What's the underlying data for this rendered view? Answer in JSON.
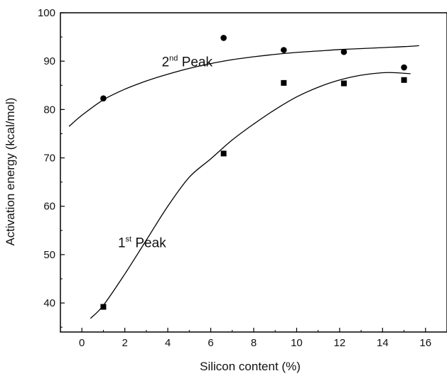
{
  "chart_data": {
    "type": "scatter",
    "title": "",
    "xlabel": "Silicon content (%)",
    "ylabel": "Activation energy (kcal/mol)",
    "xlim": [
      -1,
      17
    ],
    "ylim": [
      34,
      100
    ],
    "xticks": [
      0,
      2,
      4,
      6,
      8,
      10,
      12,
      14,
      16
    ],
    "yticks": [
      40,
      50,
      60,
      70,
      80,
      90,
      100
    ],
    "grid": false,
    "series": [
      {
        "name": "2nd Peak",
        "marker": "circle",
        "x": [
          1,
          6.6,
          9.4,
          12.2,
          15
        ],
        "y": [
          82.3,
          94.8,
          92.3,
          91.9,
          88.7
        ],
        "fit_curve": {
          "x": [
            -0.6,
            0,
            1,
            2,
            3,
            4,
            5,
            6,
            7,
            8,
            9,
            10,
            11,
            12,
            13,
            14,
            15,
            15.7
          ],
          "y": [
            76.5,
            78.8,
            82.0,
            84.2,
            85.9,
            87.3,
            88.5,
            89.5,
            90.3,
            90.9,
            91.4,
            91.8,
            92.1,
            92.4,
            92.6,
            92.8,
            93.0,
            93.2
          ]
        }
      },
      {
        "name": "1st Peak",
        "marker": "square",
        "x": [
          1,
          6.6,
          9.4,
          12.2,
          15
        ],
        "y": [
          39.2,
          70.9,
          85.5,
          85.4,
          86.1
        ],
        "fit_curve": {
          "x": [
            0.4,
            1,
            2,
            3,
            4,
            5,
            6,
            7,
            8,
            9,
            10,
            11,
            12,
            13,
            14,
            14.6,
            15.3
          ],
          "y": [
            36.8,
            39.5,
            46.0,
            53.0,
            60.0,
            66.0,
            69.8,
            73.7,
            77.0,
            80.0,
            82.6,
            84.6,
            86.1,
            87.1,
            87.6,
            87.6,
            87.4
          ]
        }
      }
    ],
    "annotations": [
      {
        "id": "second-peak",
        "base": "2",
        "sup": "nd",
        "text": "Peak",
        "x": 4.9,
        "y": 88.9
      },
      {
        "id": "first-peak",
        "base": "1",
        "sup": "st",
        "text": "Peak",
        "x": 2.8,
        "y": 51.5
      }
    ]
  }
}
